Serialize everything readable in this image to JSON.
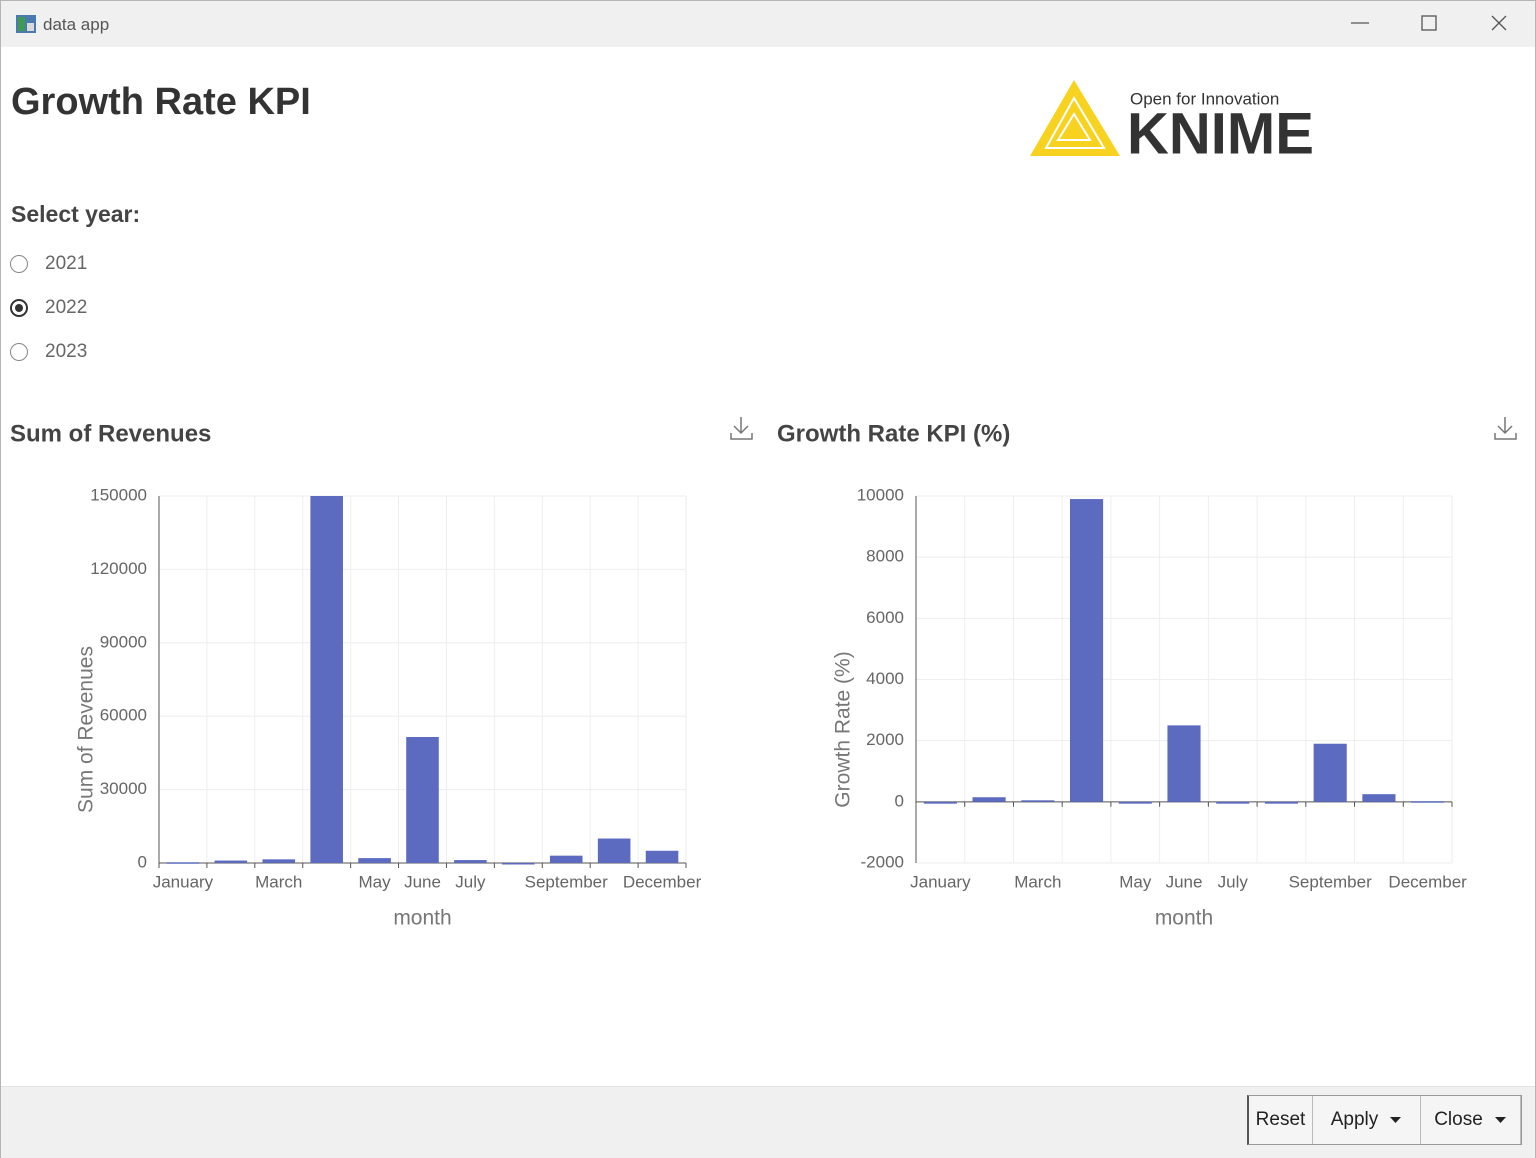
{
  "window": {
    "title": "data app"
  },
  "page": {
    "title": "Growth Rate KPI",
    "logo": {
      "tagline": "Open for Innovation",
      "name": "KNIME"
    }
  },
  "year_selector": {
    "label": "Select year:",
    "options": [
      {
        "label": "2021",
        "selected": false
      },
      {
        "label": "2022",
        "selected": true
      },
      {
        "label": "2023",
        "selected": false
      }
    ]
  },
  "chart_data": [
    {
      "type": "bar",
      "title": "Sum of Revenues",
      "x_label": "month",
      "y_label": "Sum of Revenues",
      "categories": [
        "January",
        null,
        "March",
        null,
        "May",
        "June",
        "July",
        null,
        "September",
        null,
        "December"
      ],
      "values": [
        300,
        1000,
        1500,
        150000,
        2000,
        51500,
        1200,
        0,
        3000,
        10000,
        5000
      ],
      "color": "#5c6bc0",
      "ylim": [
        0,
        150000
      ],
      "yticks": [
        0,
        30000,
        60000,
        90000,
        120000,
        150000
      ],
      "grid": true
    },
    {
      "type": "bar",
      "title": "Growth Rate KPI (%)",
      "x_label": "month",
      "y_label": "Growth Rate (%)",
      "categories": [
        "January",
        null,
        "March",
        null,
        "May",
        "June",
        "July",
        null,
        "September",
        null,
        "December"
      ],
      "values": [
        -60,
        150,
        50,
        9900,
        -60,
        2500,
        -60,
        -60,
        1900,
        250,
        20
      ],
      "color": "#5c6bc0",
      "ylim": [
        -2000,
        10000
      ],
      "yticks": [
        -2000,
        0,
        2000,
        4000,
        6000,
        8000,
        10000
      ],
      "grid": true
    }
  ],
  "buttons": [
    "Reset",
    "Apply",
    "Close"
  ]
}
